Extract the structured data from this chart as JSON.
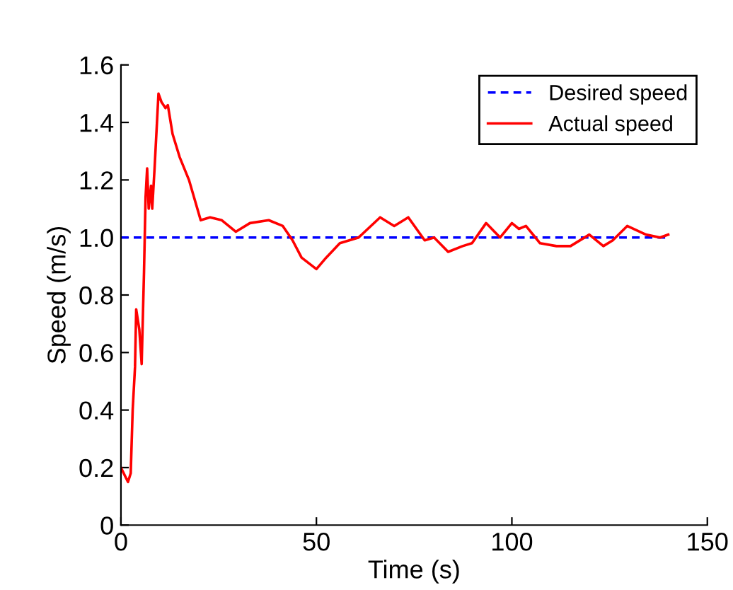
{
  "chart_data": {
    "type": "line",
    "xlabel": "Time (s)",
    "ylabel": "Speed (m/s)",
    "xlim": [
      0,
      150
    ],
    "xticks": [
      0,
      50,
      100,
      150
    ],
    "ylim": [
      0,
      1.6
    ],
    "yticks": [
      0,
      0.2,
      0.4,
      0.6,
      0.8,
      {
        "value": 1.0,
        "label": "1.0"
      },
      1.2,
      1.4,
      1.6
    ],
    "grid": false,
    "legend": "top right",
    "marker": "none",
    "series": [
      {
        "name": "Desired speed",
        "color": "#0000ff",
        "line_style": "dashed",
        "x": [
          0,
          140
        ],
        "values": [
          1.0,
          1.0
        ]
      },
      {
        "name": "Actual speed",
        "color": "#ff0000",
        "line_style": "solid",
        "x": [
          0,
          1.8,
          2.5,
          3,
          3.6,
          3.9,
          4.7,
          5.3,
          5.9,
          6.3,
          6.7,
          7.1,
          7.7,
          8.0,
          8.6,
          9.6,
          10.4,
          11.4,
          12,
          13.2,
          15,
          17.4,
          20.4,
          22.8,
          25.8,
          29.4,
          33,
          37.8,
          41.4,
          43.9,
          46.2,
          50,
          52.5,
          56,
          60.8,
          66.3,
          69.9,
          73.5,
          77.7,
          80.1,
          83.7,
          87.4,
          89.8,
          93.4,
          97,
          100,
          101.8,
          103.6,
          107.2,
          111.4,
          115,
          119.8,
          123.4,
          125.8,
          129.5,
          134.3,
          137.9,
          140
        ],
        "values": [
          0.2,
          0.15,
          0.18,
          0.4,
          0.55,
          0.75,
          0.68,
          0.56,
          0.88,
          1.14,
          1.24,
          1.1,
          1.18,
          1.1,
          1.24,
          1.5,
          1.47,
          1.45,
          1.46,
          1.36,
          1.28,
          1.2,
          1.06,
          1.07,
          1.06,
          1.02,
          1.05,
          1.06,
          1.04,
          0.99,
          0.93,
          0.89,
          0.93,
          0.98,
          1.0,
          1.07,
          1.04,
          1.07,
          0.99,
          1.0,
          0.95,
          0.97,
          0.98,
          1.05,
          1.0,
          1.05,
          1.03,
          1.04,
          0.98,
          0.97,
          0.97,
          1.01,
          0.97,
          0.99,
          1.04,
          1.01,
          1.0,
          1.01
        ]
      }
    ]
  }
}
